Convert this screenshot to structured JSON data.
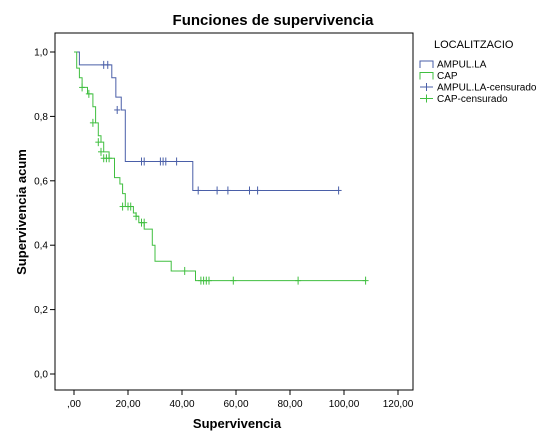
{
  "chart_data": {
    "type": "line",
    "title": "Funciones de supervivencia",
    "xlabel": "Supervivencia",
    "ylabel": "Supervivencia acum",
    "xlim": [
      0,
      120
    ],
    "ylim": [
      0,
      1
    ],
    "x_ticks": [
      0,
      20,
      40,
      60,
      80,
      100,
      120
    ],
    "x_tick_labels": [
      ",00",
      "20,00",
      "40,00",
      "60,00",
      "80,00",
      "100,00",
      "120,00"
    ],
    "y_ticks": [
      0,
      0.2,
      0.4,
      0.6,
      0.8,
      1.0
    ],
    "y_tick_labels": [
      "0,0",
      "0,2",
      "0,4",
      "0,6",
      "0,8",
      "1,0"
    ],
    "grid": false,
    "legend_placement": "top-right",
    "legend": {
      "title": "LOCALITZACIO",
      "entries": [
        {
          "label": "AMPUL.LA",
          "color": "#4a5fa8",
          "kind": "step"
        },
        {
          "label": "CAP",
          "color": "#40bf40",
          "kind": "step"
        },
        {
          "label": "AMPUL.LA-censurado",
          "color": "#4a5fa8",
          "kind": "censor"
        },
        {
          "label": "CAP-censurado",
          "color": "#40bf40",
          "kind": "censor"
        }
      ]
    },
    "series": [
      {
        "name": "AMPUL.LA",
        "color": "#4a5fa8",
        "x": [
          0,
          2,
          14,
          15.5,
          17.5,
          19,
          44,
          98
        ],
        "y": [
          1.0,
          0.96,
          0.92,
          0.86,
          0.82,
          0.66,
          0.57,
          0.57
        ],
        "censored_x": [
          11,
          12.5,
          16,
          25,
          26,
          32,
          33,
          34,
          38,
          46,
          53,
          57,
          65,
          68,
          98
        ],
        "censored_y": [
          0.96,
          0.96,
          0.82,
          0.66,
          0.66,
          0.66,
          0.66,
          0.66,
          0.66,
          0.57,
          0.57,
          0.57,
          0.57,
          0.57,
          0.57
        ]
      },
      {
        "name": "CAP",
        "color": "#40bf40",
        "x": [
          0,
          1,
          2,
          3,
          5,
          7,
          8,
          9,
          10,
          11,
          13,
          15,
          17,
          18,
          19,
          22,
          23,
          24,
          26,
          29,
          30,
          36,
          45,
          108
        ],
        "y": [
          1.0,
          0.95,
          0.92,
          0.89,
          0.87,
          0.83,
          0.78,
          0.74,
          0.72,
          0.69,
          0.67,
          0.61,
          0.59,
          0.56,
          0.52,
          0.5,
          0.49,
          0.47,
          0.45,
          0.4,
          0.35,
          0.32,
          0.29,
          0.29
        ],
        "censored_x": [
          3,
          5.5,
          7,
          9,
          10,
          11,
          12,
          13,
          18,
          20,
          21,
          23,
          25,
          26,
          41,
          47,
          48,
          49,
          50,
          59,
          83,
          108
        ],
        "censored_y": [
          0.89,
          0.87,
          0.78,
          0.72,
          0.69,
          0.67,
          0.67,
          0.67,
          0.52,
          0.52,
          0.52,
          0.49,
          0.47,
          0.47,
          0.32,
          0.29,
          0.29,
          0.29,
          0.29,
          0.29,
          0.29,
          0.29
        ]
      }
    ]
  }
}
